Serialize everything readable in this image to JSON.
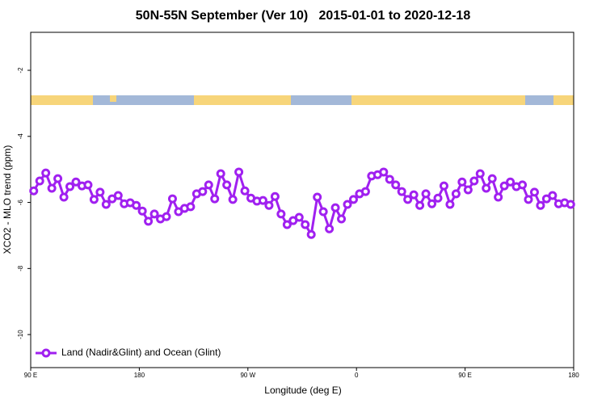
{
  "chart_data": {
    "type": "line",
    "title": "50N-55N September (Ver 10)   2015-01-01 to 2020-12-18",
    "xlabel": "Longitude (deg E)",
    "ylabel": "XCO2 - MLO trend (ppm)",
    "xlim": [
      90,
      540
    ],
    "xticks": [
      {
        "value": 90,
        "label": "90 E"
      },
      {
        "value": 180,
        "label": "180"
      },
      {
        "value": 270,
        "label": "90 W"
      },
      {
        "value": 360,
        "label": "0"
      },
      {
        "value": 450,
        "label": "90 E"
      },
      {
        "value": 540,
        "label": "180"
      }
    ],
    "ylim": [
      -11,
      -0.85
    ],
    "yticks": [
      -2,
      -4,
      -6,
      -8,
      -10
    ],
    "legend": "lower left",
    "x": [
      92.5,
      97.5,
      102.5,
      107.5,
      112.5,
      117.5,
      122.5,
      127.5,
      132.5,
      137.5,
      142.5,
      147.5,
      152.5,
      157.5,
      162.5,
      167.5,
      172.5,
      177.5,
      182.5,
      187.5,
      192.5,
      197.5,
      202.5,
      207.5,
      212.5,
      217.5,
      222.5,
      227.5,
      232.5,
      237.5,
      242.5,
      247.5,
      252.5,
      257.5,
      262.5,
      267.5,
      272.5,
      277.5,
      282.5,
      287.5,
      292.5,
      297.5,
      302.5,
      307.5,
      312.5,
      317.5,
      322.5,
      327.5,
      332.5,
      337.5,
      342.5,
      347.5,
      352.5,
      357.5,
      362.5,
      367.5,
      372.5,
      377.5,
      382.5,
      387.5,
      392.5,
      397.5,
      402.5,
      407.5,
      412.5,
      417.5,
      422.5,
      427.5,
      432.5,
      437.5,
      442.5,
      447.5,
      452.5,
      457.5,
      462.5,
      467.5,
      472.5,
      477.5,
      482.5,
      487.5,
      492.5,
      497.5,
      502.5,
      507.5,
      512.5,
      517.5,
      522.5,
      527.5,
      532.5,
      537.5
    ],
    "series": [
      {
        "name": "Land (Nadir&Glint) and Ocean (Glint)",
        "color": "#a020f0",
        "values": [
          -5.65,
          -5.35,
          -5.11,
          -5.57,
          -5.28,
          -5.84,
          -5.52,
          -5.38,
          -5.5,
          -5.47,
          -5.91,
          -5.69,
          -6.06,
          -5.89,
          -5.79,
          -6.04,
          -6.01,
          -6.09,
          -6.26,
          -6.57,
          -6.35,
          -6.5,
          -6.43,
          -5.89,
          -6.28,
          -6.18,
          -6.13,
          -5.74,
          -5.67,
          -5.47,
          -5.89,
          -5.13,
          -5.47,
          -5.91,
          -5.08,
          -5.65,
          -5.87,
          -5.96,
          -5.94,
          -6.09,
          -5.82,
          -6.35,
          -6.67,
          -6.55,
          -6.45,
          -6.67,
          -6.97,
          -5.84,
          -6.28,
          -6.8,
          -6.16,
          -6.5,
          -6.06,
          -5.91,
          -5.74,
          -5.67,
          -5.2,
          -5.16,
          -5.08,
          -5.3,
          -5.47,
          -5.67,
          -5.91,
          -5.77,
          -6.09,
          -5.74,
          -6.04,
          -5.87,
          -5.5,
          -6.06,
          -5.74,
          -5.38,
          -5.62,
          -5.35,
          -5.13,
          -5.57,
          -5.28,
          -5.84,
          -5.5,
          -5.38,
          -5.52,
          -5.47,
          -5.91,
          -5.69,
          -6.09,
          -5.89,
          -5.79,
          -6.04,
          -6.01,
          -6.06
        ]
      }
    ]
  }
}
